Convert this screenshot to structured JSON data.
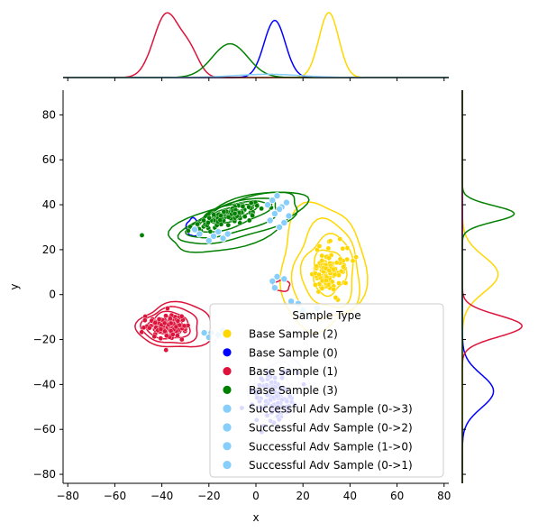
{
  "chart_data": {
    "type": "scatter",
    "subtype": "jointplot-kde",
    "xlabel": "x",
    "ylabel": "y",
    "xlim": [
      -82,
      82
    ],
    "ylim": [
      -84,
      91
    ],
    "xticks": [
      -80,
      -60,
      -40,
      -20,
      0,
      20,
      40,
      60,
      80
    ],
    "yticks": [
      -80,
      -60,
      -40,
      -20,
      0,
      20,
      40,
      60,
      80
    ],
    "grid": false,
    "legend": {
      "title": "Sample Type",
      "placement": "lower-right"
    },
    "series": [
      {
        "name": "Base Sample (2)",
        "color": "#FFD700",
        "kind": "base",
        "center": [
          31,
          10
        ],
        "spread": [
          3.5,
          6
        ],
        "contours": [
          [
            31,
            10,
            7,
            10
          ],
          [
            31,
            10,
            11,
            16
          ],
          [
            30,
            10,
            14,
            22
          ],
          [
            28,
            12,
            18,
            28
          ]
        ],
        "marginal_x": {
          "mu": 31,
          "sd": 4.2,
          "h": 1.0
        },
        "marginal_y": {
          "mu": 9,
          "sd": 8,
          "h": 0.55
        }
      },
      {
        "name": "Base Sample (0)",
        "color": "#0000FF",
        "kind": "base",
        "center": [
          8,
          -45
        ],
        "spread": [
          4,
          6
        ],
        "contours": [
          [
            -27,
            30,
            2.5,
            4
          ]
        ],
        "marginal_x": {
          "mu": 8,
          "sd": 4.5,
          "h": 0.88
        },
        "marginal_y": {
          "mu": -43,
          "sd": 7.5,
          "h": 0.48
        }
      },
      {
        "name": "Base Sample (1)",
        "color": "#DC143C",
        "kind": "base",
        "center": [
          -38,
          -14
        ],
        "spread": [
          4,
          2.5
        ],
        "contours": [
          [
            -37,
            -14,
            6,
            4
          ],
          [
            -37,
            -14,
            9,
            6
          ],
          [
            -36,
            -14,
            12,
            8
          ],
          [
            -34,
            -14,
            16,
            10
          ],
          [
            11,
            4,
            3.5,
            2.5
          ]
        ],
        "marginal_x": {
          "mu": -38,
          "sd": 5.5,
          "h": 0.98
        },
        "marginal_y": {
          "mu": -14,
          "sd": 4.8,
          "h": 0.92
        }
      },
      {
        "name": "Base Sample (3)",
        "color": "#008000",
        "kind": "base",
        "center": [
          -12,
          35
        ],
        "spread": [
          9,
          3.5
        ],
        "contours": [
          [
            -10,
            36,
            10,
            3
          ],
          [
            -10,
            35,
            16,
            5
          ],
          [
            -9,
            34,
            20,
            6.5
          ],
          [
            -6,
            34,
            26,
            8.5
          ],
          [
            -8,
            32,
            30,
            10
          ]
        ],
        "marginal_x": {
          "mu": -11,
          "sd": 7.5,
          "h": 0.52
        },
        "marginal_y": {
          "mu": 36,
          "sd": 3.6,
          "h": 0.8
        }
      },
      {
        "name": "Successful Adv Sample (0->3)",
        "color": "#87CEFA",
        "kind": "adv",
        "points": [
          [
            -18,
            26
          ],
          [
            -14,
            25
          ],
          [
            -12,
            27
          ],
          [
            5,
            40
          ],
          [
            7,
            42
          ],
          [
            9,
            44
          ],
          [
            11,
            39
          ],
          [
            13,
            41
          ],
          [
            8,
            36
          ],
          [
            6,
            33
          ],
          [
            10,
            38
          ]
        ]
      },
      {
        "name": "Successful Adv Sample (0->2)",
        "color": "#87CEFA",
        "kind": "adv",
        "points": [
          [
            7,
            6
          ],
          [
            9,
            8
          ],
          [
            12,
            7
          ],
          [
            8,
            3
          ],
          [
            18,
            -4
          ],
          [
            20,
            -7
          ],
          [
            22,
            -10
          ],
          [
            26,
            -6
          ],
          [
            15,
            -3
          ]
        ]
      },
      {
        "name": "Successful Adv Sample (1->0)",
        "color": "#87CEFA",
        "kind": "adv",
        "points": [
          [
            -22,
            -17
          ],
          [
            -19,
            -17
          ],
          [
            -16,
            -18
          ],
          [
            -14,
            -16
          ],
          [
            -20,
            -19
          ]
        ]
      },
      {
        "name": "Successful Adv Sample (0->1)",
        "color": "#87CEFA",
        "kind": "adv",
        "points": [
          [
            -24,
            27
          ],
          [
            -20,
            24
          ],
          [
            -26,
            29
          ],
          [
            -16,
            28
          ],
          [
            10,
            30
          ],
          [
            12,
            32
          ],
          [
            14,
            35
          ]
        ]
      }
    ],
    "adv_density": {
      "color": "#C0C8FF",
      "center": [
        9,
        -42
      ],
      "contours": [
        [
          9,
          -42,
          5,
          7
        ],
        [
          9,
          -41,
          9,
          11
        ],
        [
          9,
          -40,
          13,
          14
        ]
      ]
    }
  }
}
